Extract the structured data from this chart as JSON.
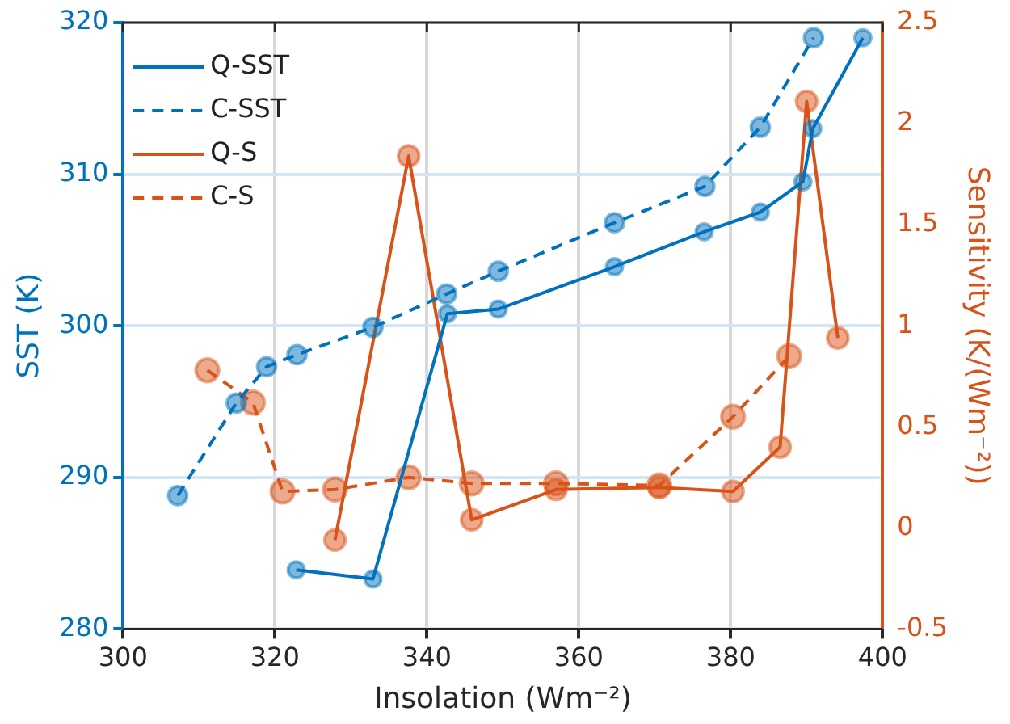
{
  "chart_data": {
    "type": "line",
    "xlabel": "Insolation (Wm⁻²)",
    "ylabel": "SST (K)",
    "y2label": "Sensitivity (K/(Wm⁻²))",
    "xlim": [
      300,
      400
    ],
    "xticks": [
      300,
      320,
      340,
      360,
      380,
      400
    ],
    "ylim": [
      280,
      320
    ],
    "yticks": [
      280,
      290,
      300,
      310,
      320
    ],
    "y2lim": [
      -0.5,
      2.5
    ],
    "y2ticks": [
      -0.5,
      0,
      0.5,
      1,
      1.5,
      2,
      2.5
    ],
    "grid": true,
    "legend": "top left",
    "marker": "circle",
    "series": [
      {
        "name": "Q-SST",
        "color": "#0072bd",
        "line_style": "solid",
        "x": [
          322.8,
          332.9,
          342.7,
          349.4,
          364.7,
          376.5,
          383.9,
          389.5,
          390.8,
          397.4
        ],
        "values": [
          283.9,
          283.3,
          300.8,
          301.1,
          303.9,
          306.2,
          307.5,
          309.5,
          313.0,
          319.0
        ]
      },
      {
        "name": "C-SST",
        "color": "#0072bd",
        "line_style": "dashed",
        "x": [
          307.2,
          314.9,
          318.9,
          322.9,
          332.9,
          342.6,
          349.4,
          364.7,
          376.6,
          383.9,
          390.9
        ],
        "values": [
          288.8,
          294.9,
          297.3,
          298.1,
          299.9,
          302.1,
          303.6,
          306.8,
          309.2,
          313.1,
          319.0
        ]
      },
      {
        "name": "Q-S",
        "color": "#d95319",
        "line_style": "solid",
        "axis": "y2",
        "x": [
          327.9,
          337.6,
          345.9,
          357.0,
          370.6,
          380.3,
          386.5,
          390.0,
          394.1
        ],
        "values": [
          -0.06,
          1.84,
          0.04,
          0.19,
          0.2,
          0.18,
          0.4,
          2.11,
          0.94
        ]
      },
      {
        "name": "C-S",
        "color": "#d95319",
        "line_style": "dashed",
        "axis": "y2",
        "x": [
          311.1,
          317.1,
          321.0,
          327.9,
          337.6,
          345.9,
          357.0,
          370.6,
          380.3,
          387.7
        ],
        "values": [
          0.78,
          0.62,
          0.18,
          0.19,
          0.25,
          0.22,
          0.22,
          0.21,
          0.55,
          0.85
        ]
      }
    ]
  }
}
